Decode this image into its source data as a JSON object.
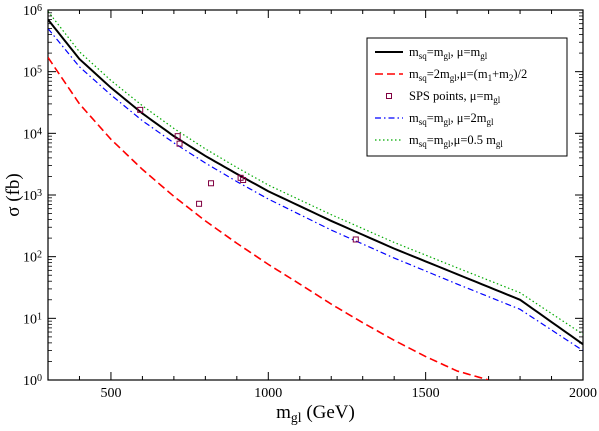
{
  "chart_data": {
    "type": "line",
    "xlabel": {
      "main": "m",
      "sub": "gl",
      "rest": " (GeV)"
    },
    "ylabel": "σ (fb)",
    "xlim": [
      300,
      2000
    ],
    "ylim": [
      1,
      1000000
    ],
    "yscale": "log",
    "x_ticks": [
      500,
      1000,
      1500,
      2000
    ],
    "y_ticks": [
      {
        "value": 1,
        "base": "10",
        "exp": "0"
      },
      {
        "value": 10,
        "base": "10",
        "exp": "1"
      },
      {
        "value": 100,
        "base": "10",
        "exp": "2"
      },
      {
        "value": 1000,
        "base": "10",
        "exp": "3"
      },
      {
        "value": 10000,
        "base": "10",
        "exp": "4"
      },
      {
        "value": 100000,
        "base": "10",
        "exp": "5"
      },
      {
        "value": 1000000,
        "base": "10",
        "exp": "6"
      }
    ],
    "legend_position": "top-right",
    "series": [
      {
        "key": "s1",
        "color": "#000000",
        "style": "solid",
        "legend": [
          {
            "t": "m"
          },
          {
            "t": "sq",
            "sub": true
          },
          {
            "t": "=m"
          },
          {
            "t": "gl",
            "sub": true
          },
          {
            "t": ", μ=m"
          },
          {
            "t": "gl",
            "sub": true
          }
        ],
        "points": [
          [
            300,
            700000
          ],
          [
            400,
            160000
          ],
          [
            500,
            55000
          ],
          [
            600,
            21000
          ],
          [
            700,
            9000
          ],
          [
            800,
            4300
          ],
          [
            900,
            2200
          ],
          [
            1000,
            1150
          ],
          [
            1200,
            380
          ],
          [
            1400,
            135
          ],
          [
            1600,
            52
          ],
          [
            1800,
            20
          ],
          [
            2000,
            3.8
          ]
        ]
      },
      {
        "key": "s2",
        "color": "#ff0000",
        "style": "dashed",
        "legend": [
          {
            "t": "m"
          },
          {
            "t": "sq",
            "sub": true
          },
          {
            "t": "=2m"
          },
          {
            "t": "gl",
            "sub": true
          },
          {
            "t": ",μ=(m"
          },
          {
            "t": "1",
            "sub": true
          },
          {
            "t": "+m"
          },
          {
            "t": "2",
            "sub": true
          },
          {
            "t": ")/2"
          }
        ],
        "points": [
          [
            300,
            170000
          ],
          [
            400,
            30000
          ],
          [
            500,
            8000
          ],
          [
            600,
            2600
          ],
          [
            700,
            950
          ],
          [
            800,
            380
          ],
          [
            900,
            165
          ],
          [
            1000,
            75
          ],
          [
            1100,
            36
          ],
          [
            1200,
            17
          ],
          [
            1300,
            8.5
          ],
          [
            1400,
            4.4
          ],
          [
            1500,
            2.4
          ],
          [
            1600,
            1.4
          ],
          [
            1700,
            1.0
          ]
        ]
      },
      {
        "key": "s3",
        "color": "#0000ff",
        "style": "dashdot",
        "legend": [
          {
            "t": "m"
          },
          {
            "t": "sq",
            "sub": true
          },
          {
            "t": "=m"
          },
          {
            "t": "gl",
            "sub": true
          },
          {
            "t": ", μ=2m"
          },
          {
            "t": "gl",
            "sub": true
          }
        ],
        "points": [
          [
            300,
            500000
          ],
          [
            400,
            120000
          ],
          [
            500,
            42000
          ],
          [
            600,
            16000
          ],
          [
            700,
            7000
          ],
          [
            800,
            3300
          ],
          [
            900,
            1650
          ],
          [
            1000,
            860
          ],
          [
            1200,
            270
          ],
          [
            1400,
            95
          ],
          [
            1600,
            36
          ],
          [
            1800,
            14
          ],
          [
            2000,
            3.0
          ]
        ]
      },
      {
        "key": "s4",
        "color": "#00aa00",
        "style": "dotted",
        "legend": [
          {
            "t": "m"
          },
          {
            "t": "sq",
            "sub": true
          },
          {
            "t": "=m"
          },
          {
            "t": "gl",
            "sub": true
          },
          {
            "t": ",μ=0.5 m"
          },
          {
            "t": "gl",
            "sub": true
          }
        ],
        "points": [
          [
            300,
            950000
          ],
          [
            400,
            210000
          ],
          [
            500,
            72000
          ],
          [
            600,
            28000
          ],
          [
            700,
            12000
          ],
          [
            800,
            5600
          ],
          [
            900,
            2800
          ],
          [
            1000,
            1450
          ],
          [
            1200,
            480
          ],
          [
            1400,
            170
          ],
          [
            1600,
            66
          ],
          [
            1800,
            26
          ],
          [
            2000,
            5.5
          ]
        ]
      }
    ],
    "scatter": {
      "key": "sps",
      "color": "#800040",
      "legend": [
        {
          "t": "SPS points, μ=m"
        },
        {
          "t": "gl",
          "sub": true
        }
      ],
      "points": [
        [
          593,
          24000
        ],
        [
          712,
          9000
        ],
        [
          718,
          6800
        ],
        [
          780,
          720
        ],
        [
          818,
          1550
        ],
        [
          912,
          1900
        ],
        [
          920,
          1750
        ],
        [
          1278,
          190
        ]
      ]
    }
  }
}
